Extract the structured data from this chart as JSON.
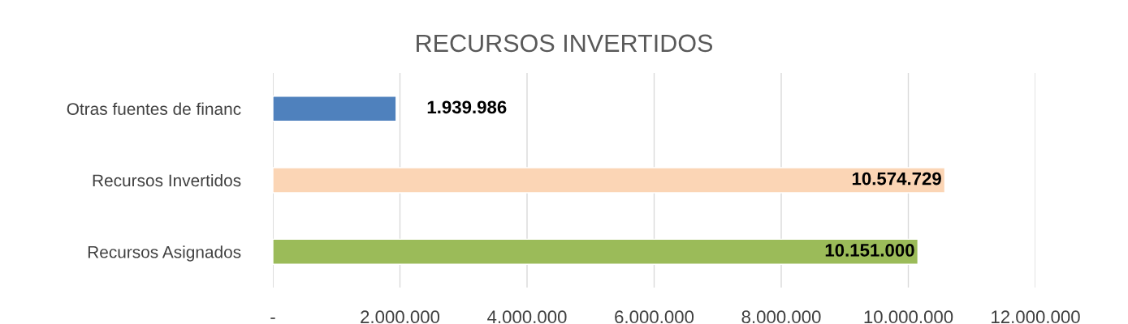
{
  "chart_data": {
    "type": "bar",
    "orientation": "horizontal",
    "title": "RECURSOS INVERTIDOS",
    "categories": [
      "Otras fuentes de financ",
      "Recursos Invertidos",
      "Recursos Asignados"
    ],
    "values": [
      1939986,
      10574729,
      10151000
    ],
    "colors": [
      "#4f81bd",
      "#fbd5b5",
      "#9bbb59"
    ],
    "value_labels": [
      "1.939.986",
      "10.574.729",
      "10.151.000"
    ],
    "xlim": [
      0,
      12000000
    ],
    "xticks": [
      {
        "value": 0,
        "label": "-"
      },
      {
        "value": 2000000,
        "label": "2.000.000"
      },
      {
        "value": 4000000,
        "label": "4.000.000"
      },
      {
        "value": 6000000,
        "label": "6.000.000"
      },
      {
        "value": 8000000,
        "label": "8.000.000"
      },
      {
        "value": 10000000,
        "label": "10.000.000"
      },
      {
        "value": 12000000,
        "label": "12.000.000"
      }
    ],
    "grid": "x"
  }
}
